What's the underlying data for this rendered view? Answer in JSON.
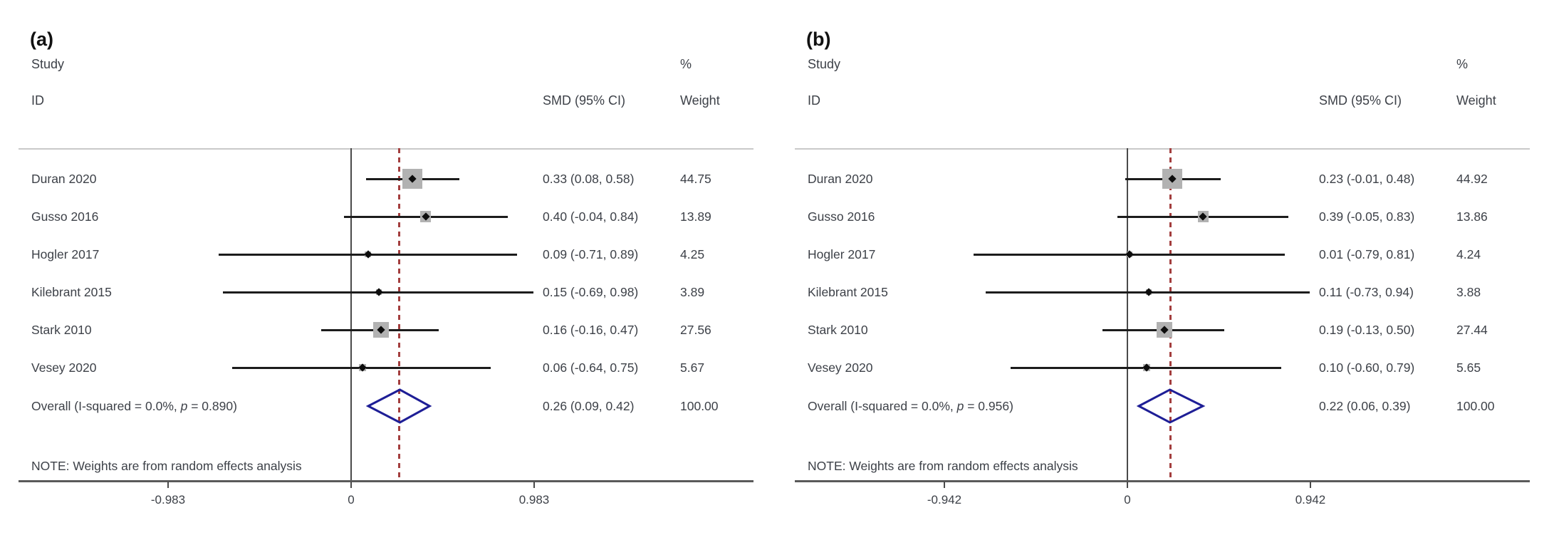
{
  "colors": {
    "text": "#3d4148",
    "ci_line": "#1c1c1c",
    "point_marker": "#0d0d0d",
    "weight_square": "#b2b2b2",
    "overall_diamond": "#1e1e96",
    "dashed_overall_line": "#a33e3e",
    "null_line": "#4a4a4a",
    "axis_line": "#5a5a5a",
    "top_rule": "#c9c9c9"
  },
  "chart_data": [
    {
      "type": "forest_plot",
      "panel_label": "(a)",
      "headers": {
        "col1_top": "Study",
        "col1_bottom": "ID",
        "pct": "%",
        "effect": "SMD (95% CI)",
        "weight": "Weight"
      },
      "axis": {
        "tick_labels": [
          "-0.983",
          "0",
          "0.983"
        ],
        "tick_values": [
          -0.983,
          0,
          0.983
        ]
      },
      "null_line": 0,
      "dashed_line": 0.26,
      "studies": [
        {
          "id": "Duran 2020",
          "smd": 0.33,
          "ci_low": 0.08,
          "ci_high": 0.58,
          "effect_label": "0.33 (0.08, 0.58)",
          "weight": 44.75,
          "weight_label": "44.75"
        },
        {
          "id": "Gusso 2016",
          "smd": 0.4,
          "ci_low": -0.04,
          "ci_high": 0.84,
          "effect_label": "0.40 (-0.04, 0.84)",
          "weight": 13.89,
          "weight_label": "13.89"
        },
        {
          "id": "Hogler 2017",
          "smd": 0.09,
          "ci_low": -0.71,
          "ci_high": 0.89,
          "effect_label": "0.09 (-0.71, 0.89)",
          "weight": 4.25,
          "weight_label": "4.25"
        },
        {
          "id": "Kilebrant 2015",
          "smd": 0.15,
          "ci_low": -0.69,
          "ci_high": 0.98,
          "effect_label": "0.15 (-0.69, 0.98)",
          "weight": 3.89,
          "weight_label": "3.89"
        },
        {
          "id": "Stark 2010",
          "smd": 0.16,
          "ci_low": -0.16,
          "ci_high": 0.47,
          "effect_label": "0.16 (-0.16, 0.47)",
          "weight": 27.56,
          "weight_label": "27.56"
        },
        {
          "id": "Vesey 2020",
          "smd": 0.06,
          "ci_low": -0.64,
          "ci_high": 0.75,
          "effect_label": "0.06 (-0.64, 0.75)",
          "weight": 5.67,
          "weight_label": "5.67"
        }
      ],
      "overall": {
        "label_pre": "Overall  (I-squared = 0.0%, ",
        "label_p": "p",
        "label_post": " = 0.890)",
        "smd": 0.26,
        "ci_low": 0.09,
        "ci_high": 0.42,
        "effect_label": "0.26 (0.09, 0.42)",
        "weight_label": "100.00"
      },
      "note": "NOTE: Weights are from random effects analysis"
    },
    {
      "type": "forest_plot",
      "panel_label": "(b)",
      "headers": {
        "col1_top": "Study",
        "col1_bottom": "ID",
        "pct": "%",
        "effect": "SMD (95% CI)",
        "weight": "Weight"
      },
      "axis": {
        "tick_labels": [
          "-0.942",
          "0",
          "0.942"
        ],
        "tick_values": [
          -0.942,
          0,
          0.942
        ]
      },
      "null_line": 0,
      "dashed_line": 0.22,
      "studies": [
        {
          "id": "Duran 2020",
          "smd": 0.23,
          "ci_low": -0.01,
          "ci_high": 0.48,
          "effect_label": "0.23 (-0.01, 0.48)",
          "weight": 44.92,
          "weight_label": "44.92"
        },
        {
          "id": "Gusso 2016",
          "smd": 0.39,
          "ci_low": -0.05,
          "ci_high": 0.83,
          "effect_label": "0.39 (-0.05, 0.83)",
          "weight": 13.86,
          "weight_label": "13.86"
        },
        {
          "id": "Hogler 2017",
          "smd": 0.01,
          "ci_low": -0.79,
          "ci_high": 0.81,
          "effect_label": "0.01 (-0.79, 0.81)",
          "weight": 4.24,
          "weight_label": "4.24"
        },
        {
          "id": "Kilebrant 2015",
          "smd": 0.11,
          "ci_low": -0.73,
          "ci_high": 0.94,
          "effect_label": "0.11 (-0.73, 0.94)",
          "weight": 3.88,
          "weight_label": "3.88"
        },
        {
          "id": "Stark 2010",
          "smd": 0.19,
          "ci_low": -0.13,
          "ci_high": 0.5,
          "effect_label": "0.19 (-0.13, 0.50)",
          "weight": 27.44,
          "weight_label": "27.44"
        },
        {
          "id": "Vesey 2020",
          "smd": 0.1,
          "ci_low": -0.6,
          "ci_high": 0.79,
          "effect_label": "0.10 (-0.60, 0.79)",
          "weight": 5.65,
          "weight_label": "5.65"
        }
      ],
      "overall": {
        "label_pre": "Overall  (I-squared = 0.0%, ",
        "label_p": "p",
        "label_post": " = 0.956)",
        "smd": 0.22,
        "ci_low": 0.06,
        "ci_high": 0.39,
        "effect_label": "0.22 (0.06, 0.39)",
        "weight_label": "100.00"
      },
      "note": "NOTE: Weights are from random effects analysis"
    }
  ]
}
